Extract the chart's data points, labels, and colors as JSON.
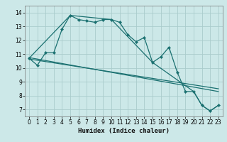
{
  "bg_color": "#cce8e8",
  "grid_color": "#aacccc",
  "line_color": "#1a7070",
  "xlim": [
    -0.5,
    23.5
  ],
  "ylim": [
    6.5,
    14.5
  ],
  "xticks": [
    0,
    1,
    2,
    3,
    4,
    5,
    6,
    7,
    8,
    9,
    10,
    11,
    12,
    13,
    14,
    15,
    16,
    17,
    18,
    19,
    20,
    21,
    22,
    23
  ],
  "yticks": [
    7,
    8,
    9,
    10,
    11,
    12,
    13,
    14
  ],
  "xlabel": "Humidex (Indice chaleur)",
  "line1": {
    "x": [
      0,
      1,
      2,
      3,
      4,
      5,
      6,
      7,
      8,
      9,
      10,
      11,
      12,
      13,
      14,
      15,
      16,
      17,
      18,
      19,
      20,
      21,
      22,
      23
    ],
    "y": [
      10.7,
      10.2,
      11.1,
      11.1,
      12.8,
      13.8,
      13.5,
      13.4,
      13.3,
      13.5,
      13.5,
      13.3,
      12.4,
      11.9,
      12.2,
      10.4,
      10.8,
      11.5,
      9.7,
      8.3,
      8.3,
      7.3,
      6.9,
      7.3
    ]
  },
  "line2": {
    "x": [
      0,
      5,
      10,
      15,
      20,
      21,
      22,
      23
    ],
    "y": [
      10.7,
      13.8,
      13.5,
      10.4,
      8.3,
      7.3,
      6.9,
      7.3
    ]
  },
  "line3": {
    "x": [
      0,
      23
    ],
    "y": [
      10.75,
      8.3
    ]
  },
  "line4": {
    "x": [
      0,
      23
    ],
    "y": [
      10.65,
      8.5
    ]
  }
}
